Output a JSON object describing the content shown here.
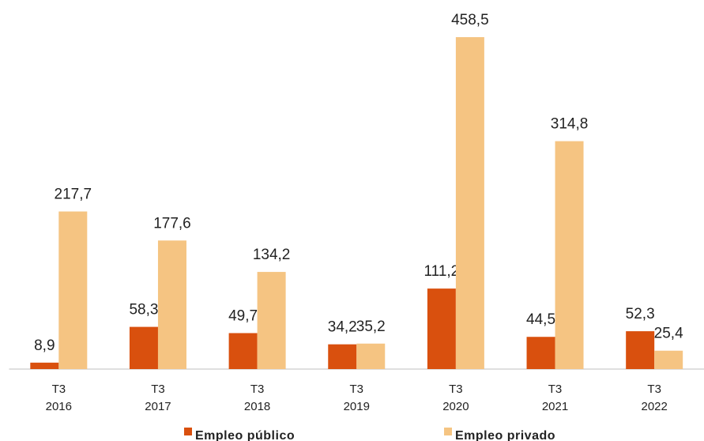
{
  "chart_data": {
    "type": "bar",
    "categories": [
      "T3 2016",
      "T3 2017",
      "T3 2018",
      "T3 2019",
      "T3 2020",
      "T3 2021",
      "T3 2022"
    ],
    "series": [
      {
        "name": "Empleo público",
        "color": "#d9500e",
        "values": [
          8.9,
          58.3,
          49.7,
          34.2,
          111.2,
          44.5,
          52.3
        ],
        "value_labels": [
          "8,9",
          "58,3",
          "49,7",
          "34,2",
          "111,2",
          "44,5",
          "52,3"
        ]
      },
      {
        "name": "Empleo privado",
        "color": "#f5c482",
        "values": [
          217.7,
          177.6,
          134.2,
          35.2,
          458.5,
          314.8,
          25.4
        ],
        "value_labels": [
          "217,7",
          "177,6",
          "134,2",
          "35,2",
          "458,5",
          "314,8",
          "25,4"
        ]
      }
    ]
  }
}
